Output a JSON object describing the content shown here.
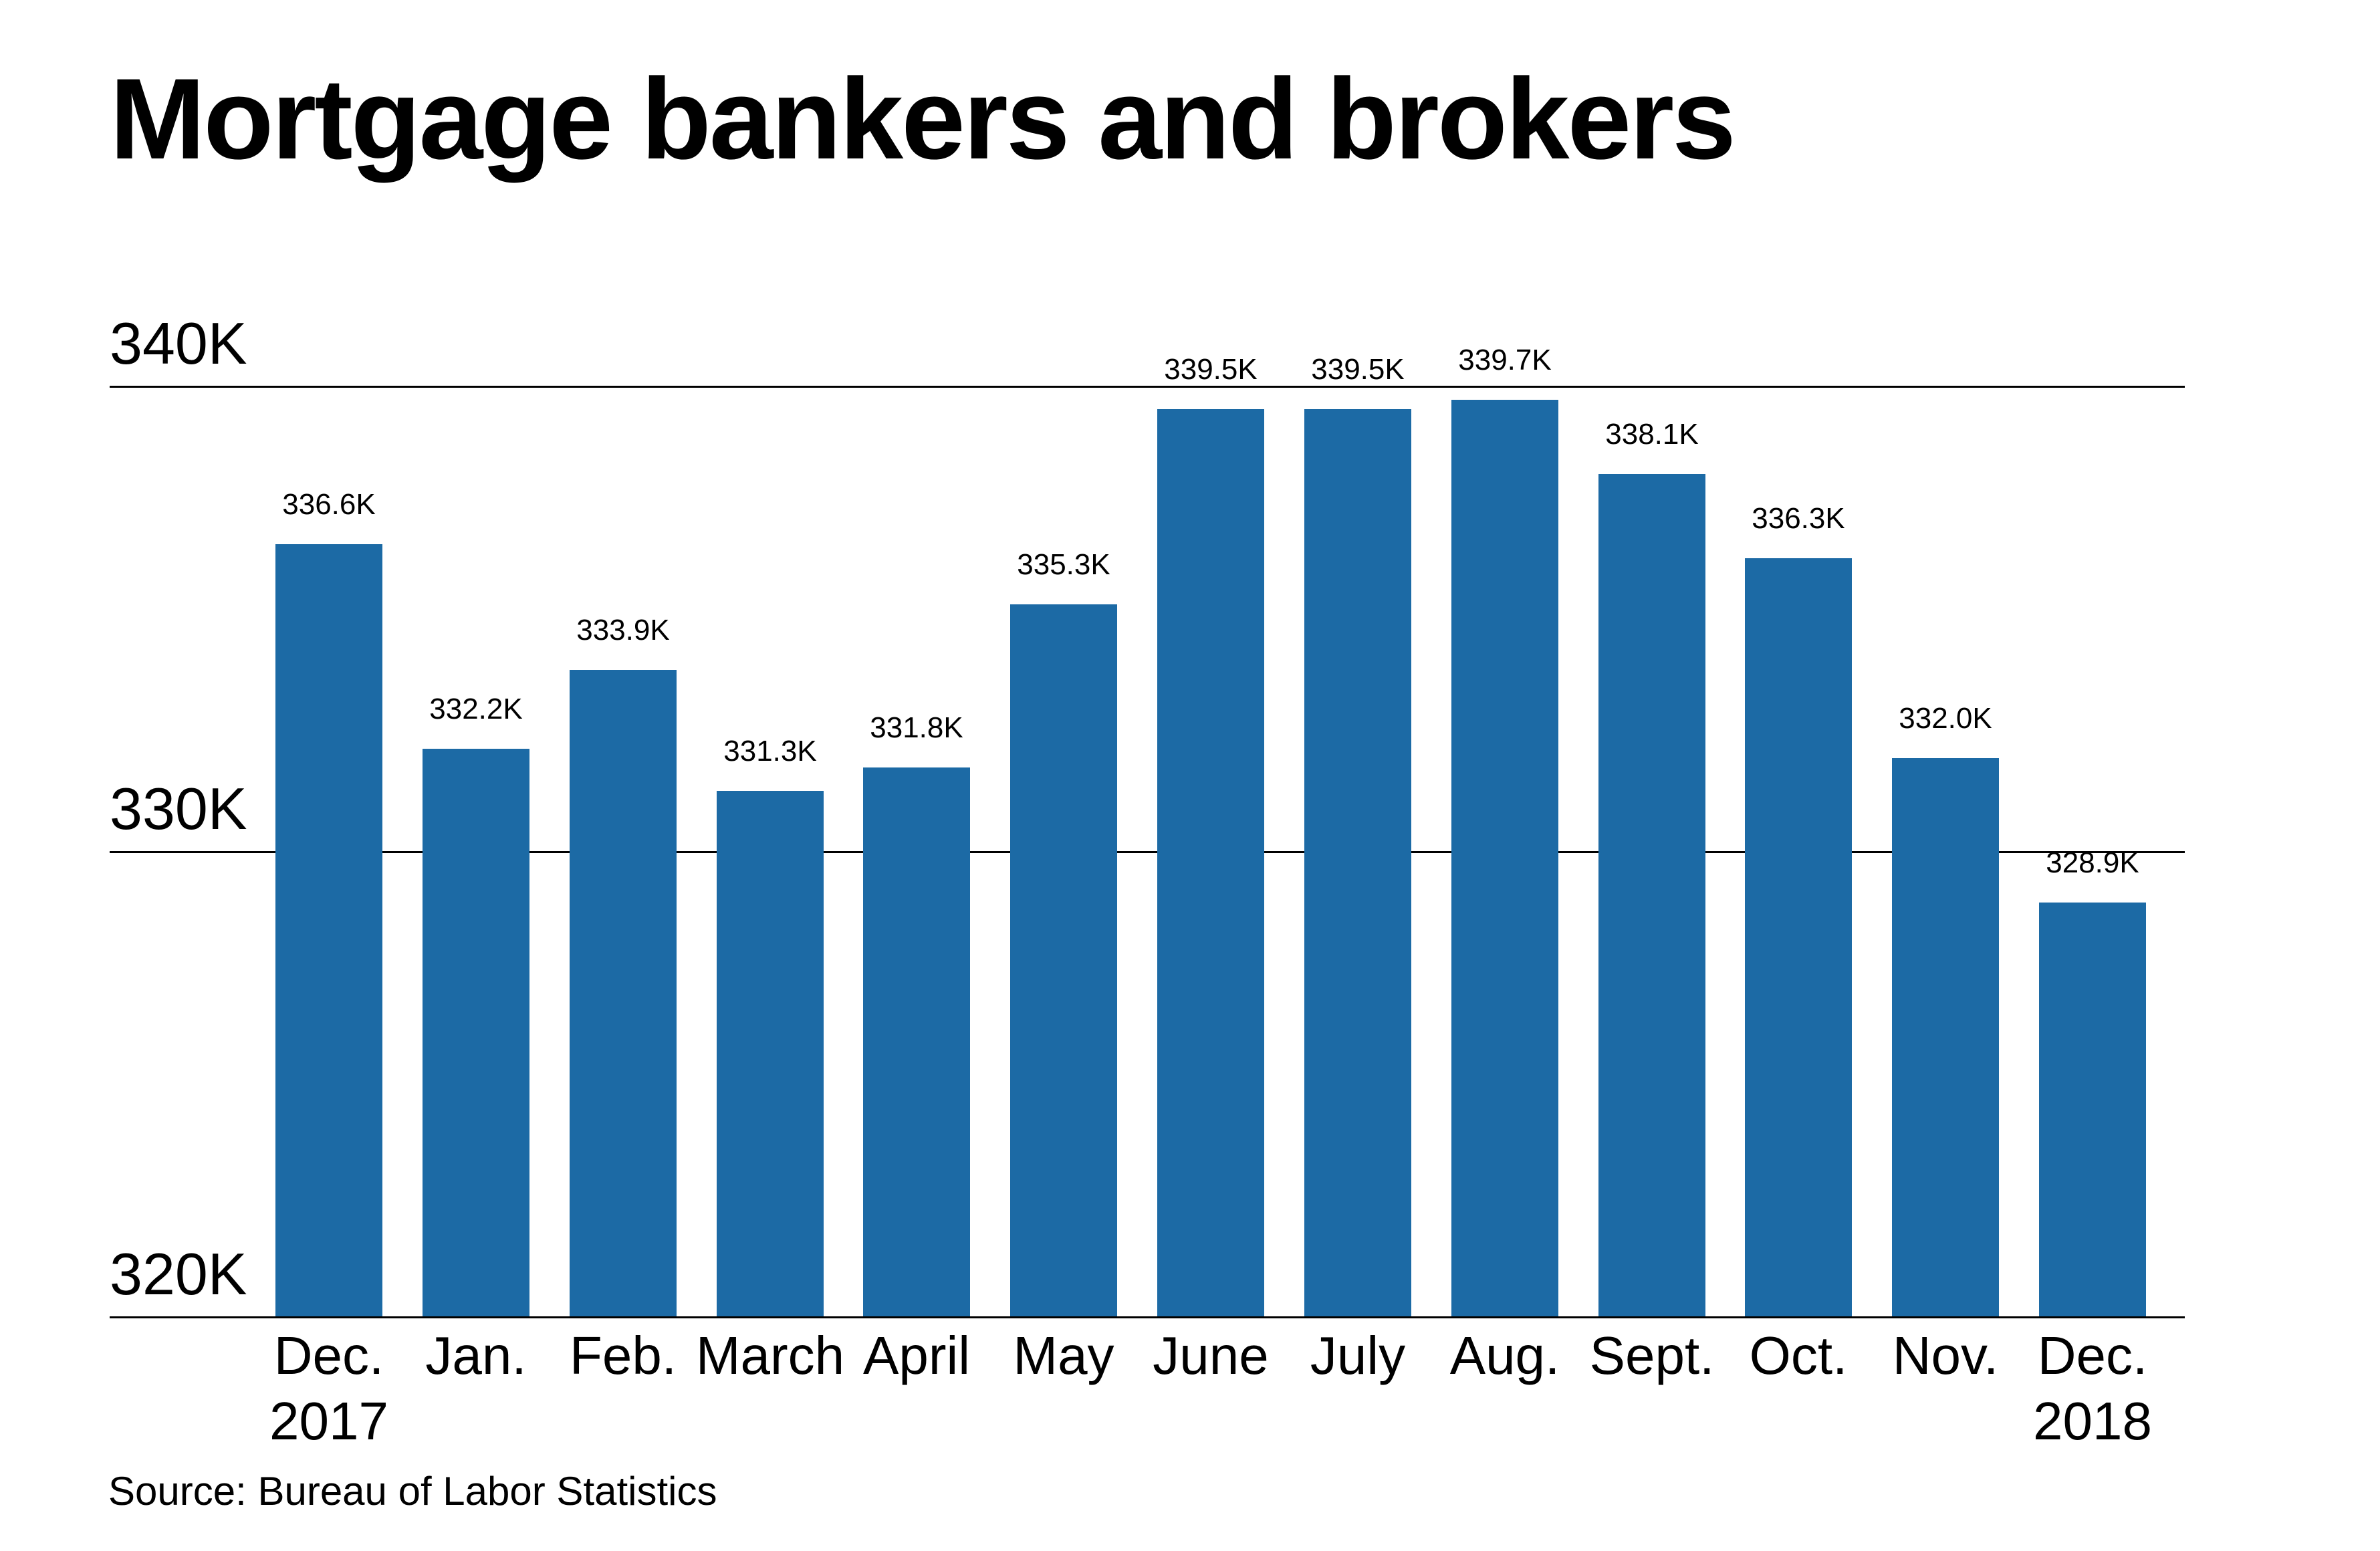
{
  "chart_data": {
    "type": "bar",
    "title": "Mortgage bankers and brokers",
    "source": "Source: Bureau of Labor Statistics",
    "xlabel": "",
    "ylabel": "",
    "ylim": [
      320,
      340
    ],
    "grid": true,
    "legend_position": "none",
    "bar_color": "#1c6aa5",
    "axis_color": "#000000",
    "text_color": "#000000",
    "background_color": "#ffffff",
    "yticks": [
      {
        "value": 340,
        "label": "340K"
      },
      {
        "value": 330,
        "label": "330K"
      },
      {
        "value": 320,
        "label": "320K"
      }
    ],
    "categories": [
      {
        "label": "Dec.",
        "year": "2017"
      },
      {
        "label": "Jan.",
        "year": ""
      },
      {
        "label": "Feb.",
        "year": ""
      },
      {
        "label": "March",
        "year": ""
      },
      {
        "label": "April",
        "year": ""
      },
      {
        "label": "May",
        "year": ""
      },
      {
        "label": "June",
        "year": ""
      },
      {
        "label": "July",
        "year": ""
      },
      {
        "label": "Aug.",
        "year": ""
      },
      {
        "label": "Sept.",
        "year": ""
      },
      {
        "label": "Oct.",
        "year": ""
      },
      {
        "label": "Nov.",
        "year": ""
      },
      {
        "label": "Dec.",
        "year": "2018"
      }
    ],
    "values": [
      336.6,
      332.2,
      333.9,
      331.3,
      331.8,
      335.3,
      339.5,
      339.5,
      339.7,
      338.1,
      336.3,
      332.0,
      328.9
    ],
    "value_labels": [
      "336.6K",
      "332.2K",
      "333.9K",
      "331.3K",
      "331.8K",
      "335.3K",
      "339.5K",
      "339.5K",
      "339.7K",
      "338.1K",
      "336.3K",
      "332.0K",
      "328.9K"
    ]
  }
}
